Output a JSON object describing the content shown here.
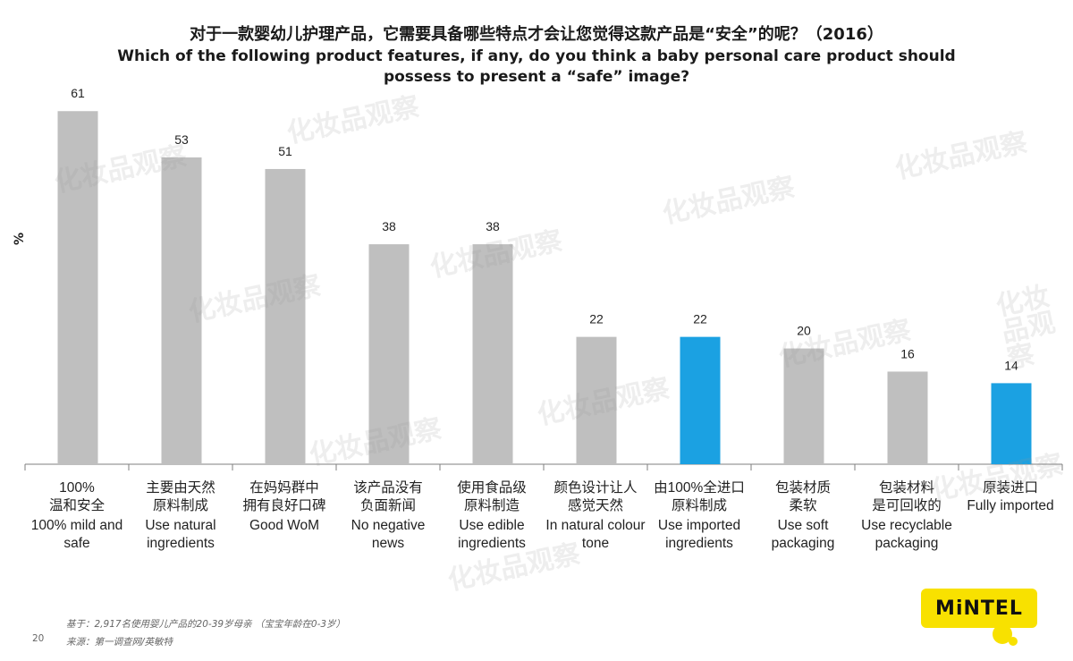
{
  "title_cn": "对于一款婴幼儿护理产品，它需要具备哪些特点才会让您觉得这款产品是“安全”的呢？（2016）",
  "title_en": "Which of the following product features, if any, do you think a baby personal care product should possess to present a “safe” image?",
  "ylabel": "%",
  "chart_data": {
    "type": "bar",
    "title": "对于一款婴幼儿护理产品，它需要具备哪些特点才会让您觉得这款产品是“安全”的呢？（2016）",
    "ylabel": "%",
    "xlabel": "",
    "ylim": [
      0,
      70
    ],
    "grid": false,
    "categories": [
      {
        "cn": "100%",
        "cn2": "温和安全",
        "en": "100% mild and safe"
      },
      {
        "cn": "主要由天然",
        "cn2": "原料制成",
        "en": "Use natural ingredients"
      },
      {
        "cn": "在妈妈群中",
        "cn2": "拥有良好口碑",
        "en": "Good WoM"
      },
      {
        "cn": "该产品没有",
        "cn2": "负面新闻",
        "en": "No negative news"
      },
      {
        "cn": "使用食品级",
        "cn2": "原料制造",
        "en": "Use edible ingredients"
      },
      {
        "cn": "颜色设计让人",
        "cn2": "感觉天然",
        "en": "In natural colour tone"
      },
      {
        "cn": "由100%全进口",
        "cn2": "原料制成",
        "en": "Use imported ingredients"
      },
      {
        "cn": "包装材质",
        "cn2": "柔软",
        "en": "Use soft packaging"
      },
      {
        "cn": "包装材料",
        "cn2": "是可回收的",
        "en": "Use recyclable packaging"
      },
      {
        "cn": "原装进口",
        "cn2": "",
        "en": "Fully imported"
      }
    ],
    "values": [
      61,
      53,
      51,
      38,
      38,
      22,
      22,
      20,
      16,
      14
    ],
    "highlight": [
      false,
      false,
      false,
      false,
      false,
      false,
      true,
      false,
      false,
      true
    ],
    "colors": {
      "default": "#bfbfbf",
      "highlight": "#1ba1e2",
      "axis": "#7f7f7f"
    }
  },
  "footer": {
    "base": "基于：2,917名使用婴儿产品的20-39岁母亲 （宝宝年龄在0-3岁）",
    "source": "来源：第一调查网/英敏特",
    "page": "20"
  },
  "logo": "MiNTEL",
  "watermark": "化妆品观察"
}
